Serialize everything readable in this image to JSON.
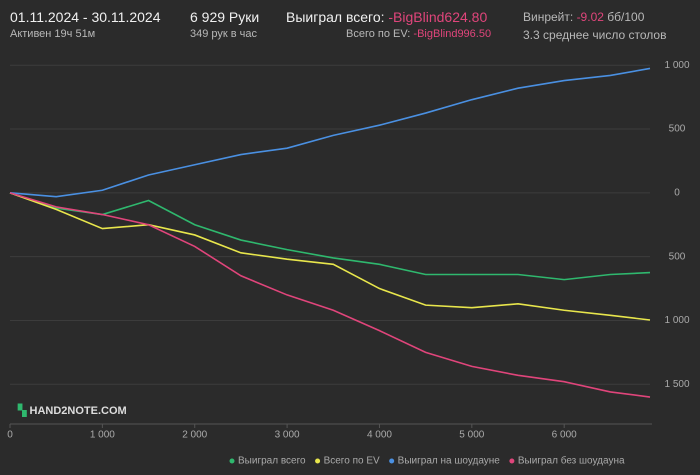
{
  "header": {
    "period": "01.11.2024 - 30.11.2024",
    "active": "Активен 19ч 51м",
    "hands": "6 929 Руки",
    "rate": "349 рук в час",
    "won_label": "Выиграл всего:",
    "won_value": "-BigBlind624.80",
    "ev_label": "Всего по EV:",
    "ev_value": "-BigBlind996.50",
    "winrate_label": "Винрейт:",
    "winrate_value": "-9.02",
    "winrate_unit": "бб/100",
    "tables": "3.3 среднее число столов",
    "logo": "HAND2NOTE.COM"
  },
  "chart_data": {
    "type": "line",
    "x": [
      0,
      500,
      1000,
      1500,
      2000,
      2500,
      3000,
      3500,
      4000,
      4500,
      5000,
      5500,
      6000,
      6500,
      6929
    ],
    "series": [
      {
        "name": "Выиграл всего",
        "color": "#2fb86e",
        "values": [
          0,
          -120,
          -170,
          -60,
          -250,
          -370,
          -445,
          -510,
          -560,
          -640,
          -640,
          -640,
          -680,
          -640,
          -625
        ]
      },
      {
        "name": "Всего по EV",
        "color": "#e8e64c",
        "values": [
          0,
          -130,
          -280,
          -250,
          -330,
          -470,
          -520,
          -560,
          -750,
          -880,
          -900,
          -870,
          -920,
          -960,
          -996.5
        ]
      },
      {
        "name": "Выиграл на шоудауне",
        "color": "#4a90e2",
        "values": [
          0,
          -30,
          20,
          140,
          220,
          300,
          350,
          450,
          530,
          625,
          730,
          820,
          880,
          920,
          975
        ]
      },
      {
        "name": "Выиграл без шоудауна",
        "color": "#e0457b",
        "values": [
          0,
          -110,
          -170,
          -250,
          -420,
          -650,
          -800,
          -920,
          -1080,
          -1250,
          -1360,
          -1430,
          -1480,
          -1560,
          -1600
        ]
      }
    ],
    "xlim": [
      0,
      6929
    ],
    "ylim": [
      -1780,
      1080
    ],
    "xticks": [
      0,
      {
        "value": 1000,
        "label": "1 000"
      },
      {
        "value": 2000,
        "label": "2 000"
      },
      {
        "value": 3000,
        "label": "3 000"
      },
      {
        "value": 4000,
        "label": "4 000"
      },
      {
        "value": 5000,
        "label": "5 000"
      },
      {
        "value": 6000,
        "label": "6 000"
      }
    ],
    "yticks": [
      {
        "value": 1000,
        "label": "1 000"
      },
      500,
      0,
      {
        "value": -500,
        "label": "500"
      },
      {
        "value": -1000,
        "label": "1 000"
      },
      {
        "value": -1500,
        "label": "1 500"
      }
    ],
    "grid": true
  }
}
